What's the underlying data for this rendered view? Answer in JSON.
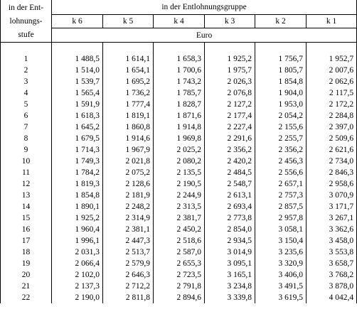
{
  "header": {
    "stub_label_line1": "in der Ent-",
    "stub_label_line2": "lohnungs-",
    "stub_label_line3": "stufe",
    "group_label": "in der Entlohnungsgruppe",
    "columns": [
      "k 6",
      "k 5",
      "k 4",
      "k 3",
      "k 2",
      "k 1"
    ],
    "unit": "Euro"
  },
  "rows": [
    {
      "stufe": "1",
      "values": [
        "1 488,5",
        "1 614,1",
        "1 658,3",
        "1 925,2",
        "1 756,7",
        "1 952,7"
      ]
    },
    {
      "stufe": "2",
      "values": [
        "1 514,0",
        "1 654,1",
        "1 700,6",
        "1 975,7",
        "1 805,7",
        "2 007,6"
      ]
    },
    {
      "stufe": "3",
      "values": [
        "1 539,7",
        "1 695,2",
        "1 743,2",
        "2 026,3",
        "1 854,8",
        "2 062,6"
      ]
    },
    {
      "stufe": "4",
      "values": [
        "1 565,4",
        "1 736,2",
        "1 785,7",
        "2 076,8",
        "1 904,0",
        "2 117,5"
      ]
    },
    {
      "stufe": "5",
      "values": [
        "1 591,9",
        "1 777,4",
        "1 828,7",
        "2 127,2",
        "1 953,0",
        "2 172,2"
      ]
    },
    {
      "stufe": "6",
      "values": [
        "1 618,3",
        "1 819,1",
        "1 871,6",
        "2 177,4",
        "2 054,2",
        "2 284,8"
      ]
    },
    {
      "stufe": "7",
      "values": [
        "1 645,2",
        "1 860,8",
        "1 914,8",
        "2 227,4",
        "2 155,6",
        "2 397,0"
      ]
    },
    {
      "stufe": "8",
      "values": [
        "1 679,5",
        "1 914,6",
        "1 969,8",
        "2 291,6",
        "2 255,7",
        "2 509,6"
      ]
    },
    {
      "stufe": "9",
      "values": [
        "1 714,3",
        "1 967,9",
        "2 025,2",
        "2 356,2",
        "2 356,2",
        "2 621,6"
      ]
    },
    {
      "stufe": "10",
      "values": [
        "1 749,3",
        "2 021,8",
        "2 080,2",
        "2 420,2",
        "2 456,3",
        "2 734,0"
      ]
    },
    {
      "stufe": "11",
      "values": [
        "1 784,2",
        "2 075,2",
        "2 135,5",
        "2 484,5",
        "2 556,6",
        "2 846,3"
      ]
    },
    {
      "stufe": "12",
      "values": [
        "1 819,3",
        "2 128,6",
        "2 190,5",
        "2 548,7",
        "2 657,1",
        "2 958,6"
      ]
    },
    {
      "stufe": "13",
      "values": [
        "1 854,8",
        "2 181,9",
        "2 244,9",
        "2 613,1",
        "2 757,3",
        "3 070,9"
      ]
    },
    {
      "stufe": "14",
      "values": [
        "1 890,1",
        "2 248,2",
        "2 313,5",
        "2 693,4",
        "2 857,5",
        "3 171,7"
      ]
    },
    {
      "stufe": "15",
      "values": [
        "1 925,2",
        "2 314,9",
        "2 381,7",
        "2 773,8",
        "2 957,8",
        "3 267,1"
      ]
    },
    {
      "stufe": "16",
      "values": [
        "1 960,4",
        "2 381,1",
        "2 450,2",
        "2 854,0",
        "3 058,1",
        "3 362,6"
      ]
    },
    {
      "stufe": "17",
      "values": [
        "1 996,1",
        "2 447,3",
        "2 518,6",
        "2 934,5",
        "3 150,4",
        "3 458,0"
      ]
    },
    {
      "stufe": "18",
      "values": [
        "2 031,3",
        "2 513,7",
        "2 587,0",
        "3 014,9",
        "3 235,6",
        "3 553,8"
      ]
    },
    {
      "stufe": "19",
      "values": [
        "2 066,4",
        "2 579,9",
        "2 655,3",
        "3 095,1",
        "3 320,9",
        "3 658,7"
      ]
    },
    {
      "stufe": "20",
      "values": [
        "2 102,0",
        "2 646,3",
        "2 723,5",
        "3 165,1",
        "3 406,0",
        "3 768,2"
      ]
    },
    {
      "stufe": "21",
      "values": [
        "2 137,3",
        "2 712,2",
        "2 791,8",
        "3 234,8",
        "3 491,5",
        "3 878,0"
      ]
    },
    {
      "stufe": "22",
      "values": [
        "2 190,0",
        "2 811,8",
        "2 894,6",
        "3 339,8",
        "3 619,5",
        "4 042,4"
      ]
    }
  ]
}
